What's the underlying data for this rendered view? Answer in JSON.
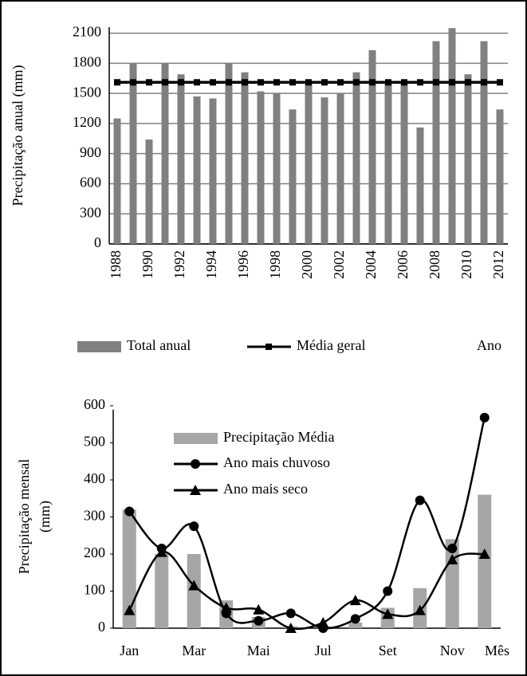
{
  "chart_data": [
    {
      "type": "bar",
      "y_label": "Precipitação anual (mm)",
      "x_label": "Ano",
      "categories": [
        "1988",
        null,
        "1990",
        null,
        "1992",
        null,
        "1994",
        null,
        "1996",
        null,
        "1998",
        null,
        "2000",
        null,
        "2002",
        null,
        "2004",
        null,
        "2006",
        null,
        "2008",
        null,
        "2010",
        null,
        "2012"
      ],
      "series": [
        {
          "name": "Total anual",
          "type": "bar",
          "color": "#808080",
          "values": [
            1250,
            1800,
            1040,
            1800,
            1690,
            1470,
            1450,
            1800,
            1710,
            1520,
            1500,
            1340,
            1620,
            1460,
            1500,
            1710,
            1930,
            1620,
            1610,
            1160,
            2020,
            2150,
            1690,
            2020,
            1340
          ]
        },
        {
          "name": "Média geral",
          "type": "line",
          "color": "#000000",
          "marker": "square",
          "values": [
            1610,
            1610,
            1610,
            1610,
            1610,
            1610,
            1610,
            1610,
            1610,
            1610,
            1610,
            1610,
            1610,
            1610,
            1610,
            1610,
            1610,
            1610,
            1610,
            1610,
            1610,
            1610,
            1610,
            1610,
            1610
          ]
        }
      ],
      "ylim": [
        0,
        2200
      ],
      "yticks": [
        0,
        300,
        600,
        900,
        1200,
        1500,
        1800,
        2100
      ],
      "grid": true,
      "legend": "bottom"
    },
    {
      "type": "bar",
      "y_label": [
        "Precipitação mensal",
        "(mm)"
      ],
      "x_label": "Mês",
      "categories": [
        "Jan",
        null,
        "Mar",
        null,
        "Mai",
        null,
        "Jul",
        null,
        "Set",
        null,
        "Nov",
        null
      ],
      "series": [
        {
          "name": "Precipitação Média",
          "type": "bar",
          "color": "#a6a6a6",
          "values": [
            320,
            200,
            200,
            75,
            30,
            5,
            5,
            15,
            55,
            108,
            240,
            360
          ]
        },
        {
          "name": "Ano mais chuvoso",
          "type": "line",
          "color": "#000000",
          "marker": "circle",
          "smooth": true,
          "values": [
            315,
            215,
            275,
            40,
            20,
            40,
            0,
            25,
            100,
            345,
            215,
            568
          ]
        },
        {
          "name": "Ano mais seco",
          "type": "line",
          "color": "#000000",
          "marker": "triangle",
          "smooth": true,
          "values": [
            48,
            205,
            115,
            55,
            50,
            0,
            15,
            75,
            38,
            48,
            185,
            200
          ]
        }
      ],
      "ylim": [
        0,
        600
      ],
      "yticks": [
        0,
        100,
        200,
        300,
        400,
        500,
        600
      ],
      "grid": false,
      "legend": "top-left"
    }
  ]
}
